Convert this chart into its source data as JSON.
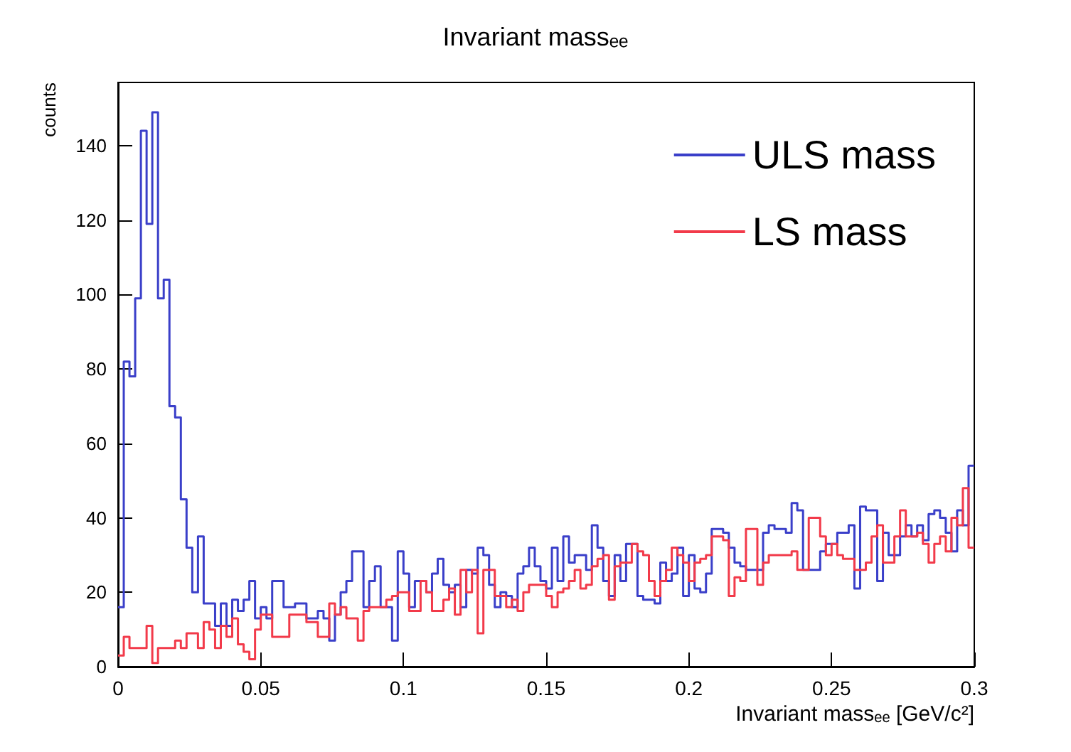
{
  "chart_data": {
    "type": "histogram",
    "title": "Invariant massₑₑ",
    "xlabel": "Invariant massₑₑ [GeV/c²]",
    "ylabel": "counts",
    "bins": [
      0,
      0.002,
      0.004,
      0.006,
      0.008,
      0.01,
      0.012,
      0.014,
      0.016,
      0.018,
      0.02,
      0.022,
      0.024,
      0.026,
      0.028,
      0.03,
      0.032,
      0.034,
      0.036,
      0.038,
      0.04,
      0.042,
      0.044,
      0.046,
      0.048,
      0.05,
      0.052,
      0.054,
      0.056,
      0.058,
      0.06,
      0.062,
      0.064,
      0.066,
      0.068,
      0.07,
      0.072,
      0.074,
      0.076,
      0.078,
      0.08,
      0.082,
      0.084,
      0.086,
      0.088,
      0.09,
      0.092,
      0.094,
      0.096,
      0.098,
      0.1,
      0.102,
      0.104,
      0.106,
      0.108,
      0.11,
      0.112,
      0.114,
      0.116,
      0.118,
      0.12,
      0.122,
      0.124,
      0.126,
      0.128,
      0.13,
      0.132,
      0.134,
      0.136,
      0.138,
      0.14,
      0.142,
      0.144,
      0.146,
      0.148,
      0.15,
      0.152,
      0.154,
      0.156,
      0.158,
      0.16,
      0.162,
      0.164,
      0.166,
      0.168,
      0.17,
      0.172,
      0.174,
      0.176,
      0.178,
      0.18,
      0.182,
      0.184,
      0.186,
      0.188,
      0.19,
      0.192,
      0.194,
      0.196,
      0.198,
      0.2,
      0.202,
      0.204,
      0.206,
      0.208,
      0.21,
      0.212,
      0.214,
      0.216,
      0.218,
      0.22,
      0.222,
      0.224,
      0.226,
      0.228,
      0.23,
      0.232,
      0.234,
      0.236,
      0.238,
      0.24,
      0.242,
      0.244,
      0.246,
      0.248,
      0.25,
      0.252,
      0.254,
      0.256,
      0.258,
      0.26,
      0.262,
      0.264,
      0.266,
      0.268,
      0.27,
      0.272,
      0.274,
      0.276,
      0.278,
      0.28,
      0.282,
      0.284,
      0.286,
      0.288,
      0.29,
      0.292,
      0.294,
      0.296,
      0.298,
      0.3
    ],
    "series": [
      {
        "name": "ULS mass",
        "color": "#3a3fc9",
        "values": [
          16,
          82,
          78,
          99,
          144,
          119,
          149,
          99,
          104,
          70,
          67,
          45,
          32,
          20,
          35,
          17,
          17,
          11,
          17,
          11,
          18,
          15,
          18,
          23,
          13,
          16,
          13,
          23,
          23,
          16,
          16,
          17,
          17,
          13,
          13,
          15,
          13,
          7,
          14,
          20,
          23,
          31,
          31,
          16,
          23,
          27,
          16,
          16,
          7,
          31,
          25,
          16,
          23,
          23,
          20,
          25,
          29,
          22,
          20,
          22,
          16,
          26,
          25,
          32,
          30,
          22,
          16,
          20,
          19,
          16,
          25,
          27,
          32,
          27,
          23,
          21,
          32,
          23,
          35,
          28,
          30,
          30,
          26,
          38,
          32,
          23,
          19,
          30,
          23,
          33,
          33,
          19,
          18,
          18,
          17,
          28,
          23,
          25,
          32,
          19,
          30,
          21,
          20,
          25,
          37,
          37,
          36,
          32,
          28,
          27,
          26,
          26,
          26,
          36,
          38,
          37,
          37,
          36,
          44,
          42,
          26,
          26,
          26,
          31,
          33,
          33,
          36,
          36,
          38,
          21,
          43,
          42,
          42,
          23,
          36,
          30,
          30,
          35,
          38,
          35,
          38,
          34,
          41,
          42,
          40,
          36,
          31,
          42,
          38,
          54
        ]
      },
      {
        "name": "LS mass",
        "color": "#f23a4a",
        "values": [
          3,
          8,
          5,
          5,
          5,
          11,
          1,
          5,
          5,
          5,
          7,
          5,
          9,
          9,
          5,
          12,
          10,
          5,
          11,
          8,
          13,
          6,
          4,
          2,
          10,
          14,
          14,
          8,
          8,
          8,
          14,
          14,
          14,
          12,
          12,
          8,
          8,
          17,
          14,
          16,
          13,
          13,
          7,
          15,
          16,
          16,
          16,
          18,
          19,
          20,
          20,
          15,
          15,
          23,
          20,
          15,
          15,
          18,
          21,
          14,
          26,
          20,
          26,
          9,
          26,
          26,
          19,
          19,
          16,
          18,
          15,
          20,
          22,
          22,
          22,
          19,
          16,
          20,
          21,
          23,
          26,
          21,
          22,
          27,
          29,
          30,
          18,
          27,
          28,
          28,
          33,
          31,
          30,
          23,
          19,
          23,
          26,
          32,
          30,
          28,
          23,
          28,
          29,
          30,
          35,
          35,
          34,
          19,
          24,
          23,
          37,
          37,
          22,
          28,
          30,
          30,
          30,
          30,
          31,
          26,
          26,
          40,
          40,
          35,
          30,
          33,
          30,
          29,
          29,
          26,
          26,
          28,
          35,
          38,
          28,
          28,
          35,
          42,
          35,
          35,
          36,
          33,
          28,
          33,
          35,
          31,
          40,
          38,
          48,
          32
        ]
      }
    ],
    "xlim": [
      0,
      0.3
    ],
    "xticks": [
      0,
      0.05,
      0.1,
      0.15,
      0.2,
      0.25,
      0.3
    ],
    "ylim": [
      0,
      157
    ],
    "yticks": [
      0,
      20,
      40,
      60,
      80,
      100,
      120,
      140
    ],
    "legend": "top right"
  }
}
